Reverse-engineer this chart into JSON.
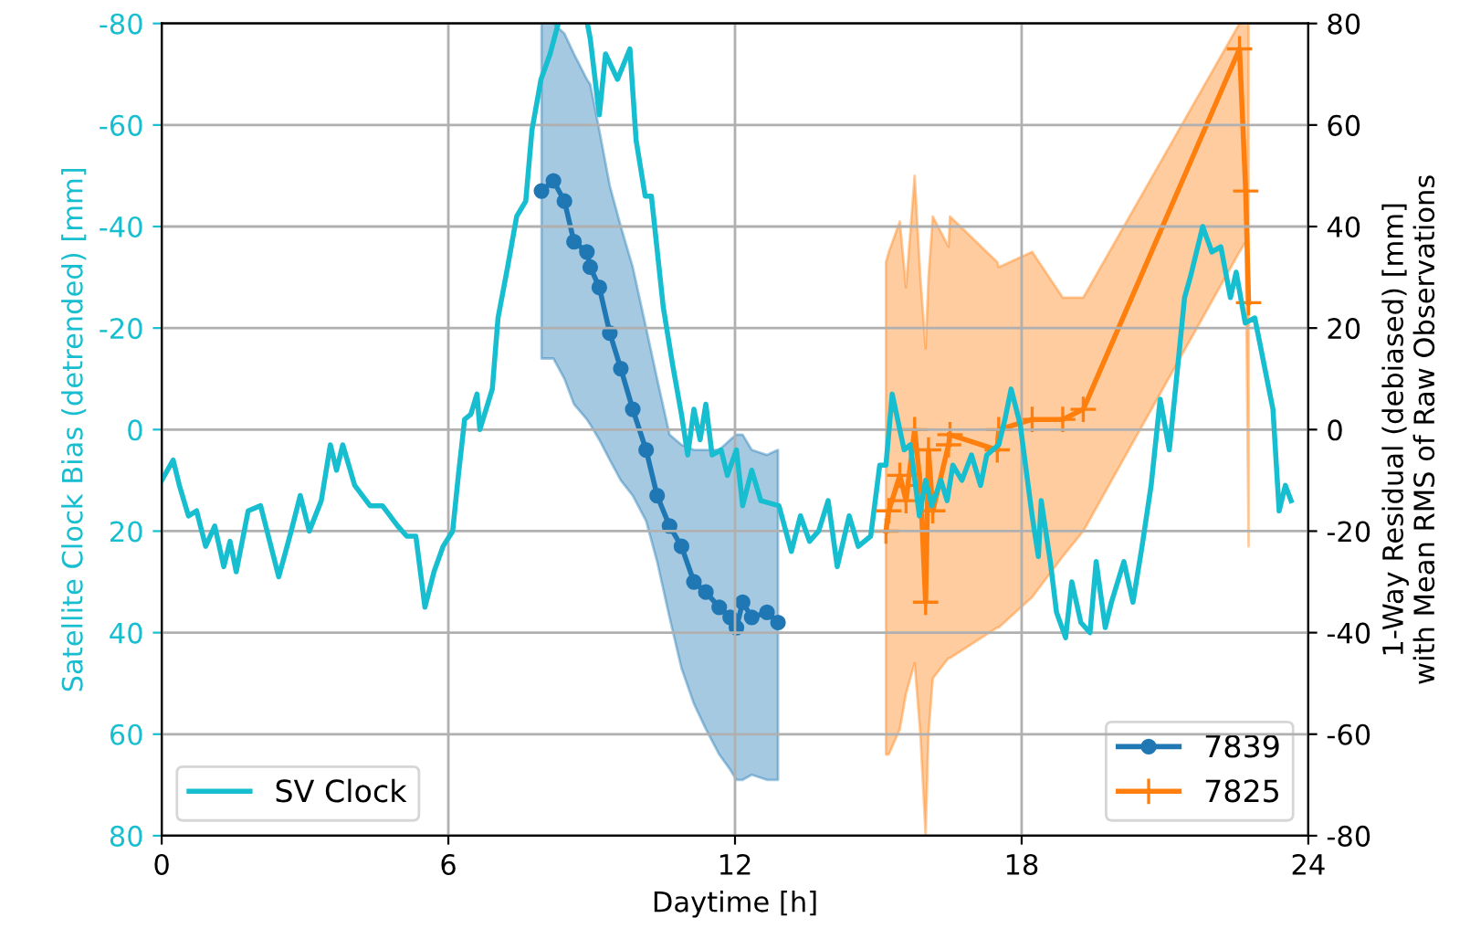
{
  "chart_data": {
    "type": "line",
    "xlabel": "Daytime [h]",
    "ylabel": "Satellite Clock Bias (detrended) [mm]",
    "y2label": "1-Way Residual (debiased) [mm]\nwith Mean RMS of Raw Observations",
    "xlim": [
      0,
      24
    ],
    "xticks": [
      0,
      6,
      12,
      18,
      24
    ],
    "ylim": [
      80,
      -80
    ],
    "yticks": [
      -80,
      -60,
      -40,
      -20,
      0,
      20,
      40,
      60,
      80
    ],
    "y2lim": [
      -80,
      80
    ],
    "y2ticks": [
      -80,
      -60,
      -40,
      -20,
      0,
      20,
      40,
      60,
      80
    ],
    "grid": true,
    "legend": "bottom",
    "series": [
      {
        "name": "SV Clock",
        "color": "#17becf",
        "marker": "none",
        "x": [
          0.0,
          0.24,
          0.37,
          0.56,
          0.73,
          0.92,
          1.11,
          1.3,
          1.43,
          1.56,
          1.81,
          2.07,
          2.26,
          2.45,
          2.71,
          2.9,
          3.09,
          3.34,
          3.53,
          3.66,
          3.79,
          4.04,
          4.36,
          4.62,
          4.94,
          5.13,
          5.32,
          5.51,
          5.7,
          5.89,
          6.09,
          6.21,
          6.34,
          6.47,
          6.6,
          6.66,
          6.92,
          7.04,
          7.24,
          7.43,
          7.62,
          7.75,
          7.94,
          8.13,
          8.3,
          8.6,
          8.91,
          8.97,
          9.16,
          9.29,
          9.54,
          9.8,
          9.93,
          10.12,
          10.25,
          10.5,
          10.69,
          10.88,
          11.01,
          11.14,
          11.27,
          11.39,
          11.52,
          11.71,
          11.84,
          12.03,
          12.16,
          12.35,
          12.54,
          12.92,
          13.18,
          13.37,
          13.56,
          13.75,
          13.95,
          14.14,
          14.39,
          14.58,
          14.84,
          15.03,
          15.16,
          15.29,
          15.54,
          15.67,
          15.86,
          15.99,
          16.12,
          16.31,
          16.44,
          16.56,
          16.75,
          16.95,
          17.14,
          17.27,
          17.52,
          17.65,
          17.78,
          17.97,
          18.22,
          18.35,
          18.41,
          18.6,
          18.73,
          18.92,
          19.05,
          19.24,
          19.43,
          19.56,
          19.75,
          19.88,
          20.14,
          20.33,
          20.52,
          20.71,
          20.9,
          21.09,
          21.22,
          21.41,
          21.53,
          21.79,
          21.98,
          22.17,
          22.37,
          22.49,
          22.68,
          22.88,
          23.07,
          23.26,
          23.39,
          23.52,
          23.64
        ],
        "values": [
          10,
          6,
          11,
          17,
          16,
          23,
          19,
          27,
          22,
          28,
          16,
          15,
          22,
          29,
          20,
          13,
          20,
          14,
          3,
          8,
          3,
          11,
          15,
          15,
          19,
          21,
          21,
          35,
          28,
          23,
          20,
          9,
          -2,
          -3,
          -7,
          0,
          -8,
          -22,
          -32,
          -42,
          -45,
          -59,
          -69,
          -74,
          -80,
          null,
          -80,
          -77,
          -62,
          -74,
          -69,
          -75,
          -57,
          -46,
          -46,
          -24,
          -13,
          -3,
          5,
          -4,
          2,
          -5,
          5,
          4,
          9,
          4,
          15,
          8,
          14,
          15,
          24,
          17,
          22,
          20,
          14,
          27,
          17,
          23,
          21,
          7,
          7,
          -7,
          4,
          3,
          17,
          10,
          15,
          10,
          14,
          7,
          10,
          5,
          11,
          5,
          3,
          -2,
          -8,
          -1,
          17,
          25,
          14,
          26,
          36,
          41,
          30,
          38,
          40,
          26,
          39,
          34,
          26,
          34,
          23,
          11,
          -6,
          4,
          -8,
          -26,
          -30,
          -40,
          -35,
          -36,
          -26,
          -31,
          -21,
          -22,
          -13,
          -4,
          16,
          11,
          14
        ]
      },
      {
        "name": "7839",
        "color": "#1f77b4",
        "axis": "y2",
        "marker": "circle",
        "x": [
          7.95,
          8.2,
          8.43,
          8.63,
          8.9,
          8.97,
          9.16,
          9.38,
          9.61,
          9.86,
          10.14,
          10.37,
          10.63,
          10.88,
          11.14,
          11.39,
          11.67,
          11.9,
          12.03,
          12.16,
          12.35,
          12.67,
          12.9
        ],
        "values": [
          47,
          49,
          45,
          37,
          35,
          32,
          28,
          19,
          12,
          4,
          -4,
          -13,
          -19,
          -23,
          -30,
          -32,
          -35,
          -37,
          -39,
          -34,
          -37,
          -36,
          -38
        ],
        "upper": [
          80,
          80,
          78,
          74,
          69,
          68,
          59,
          48,
          40,
          32,
          20,
          10,
          -1,
          -3,
          -4,
          -4,
          -4,
          -2,
          -1,
          -1,
          -4,
          -5,
          -4
        ],
        "lower": [
          14,
          14,
          10,
          5,
          2,
          1,
          -2,
          -6,
          -10,
          -13,
          -18,
          -26,
          -37,
          -47,
          -54,
          -59,
          -64,
          -67,
          -69,
          -69,
          -68,
          -69,
          -69
        ]
      },
      {
        "name": "7825",
        "color": "#ff7f0e",
        "axis": "y2",
        "marker": "cross",
        "x": [
          15.16,
          15.22,
          15.45,
          15.58,
          15.76,
          15.88,
          15.99,
          16.05,
          16.14,
          16.47,
          16.5,
          17.49,
          17.52,
          18.22,
          18.86,
          19.29,
          22.56,
          22.69,
          22.75
        ],
        "values": [
          -20,
          -16,
          -9,
          -14,
          0,
          -11,
          -34,
          -4,
          -16,
          -3,
          -1,
          -4,
          0,
          2,
          2,
          4,
          75,
          47,
          25
        ],
        "upper": [
          33,
          35,
          41,
          28,
          50,
          30,
          16,
          30,
          42,
          36,
          42,
          33,
          32,
          35,
          26,
          26,
          80,
          80,
          80
        ],
        "lower": [
          -64,
          -64,
          -59,
          -52,
          -46,
          -60,
          -80,
          -60,
          -49,
          -45,
          -45,
          -39,
          -39,
          -33,
          -25,
          -20,
          35,
          37,
          -23
        ]
      }
    ]
  }
}
